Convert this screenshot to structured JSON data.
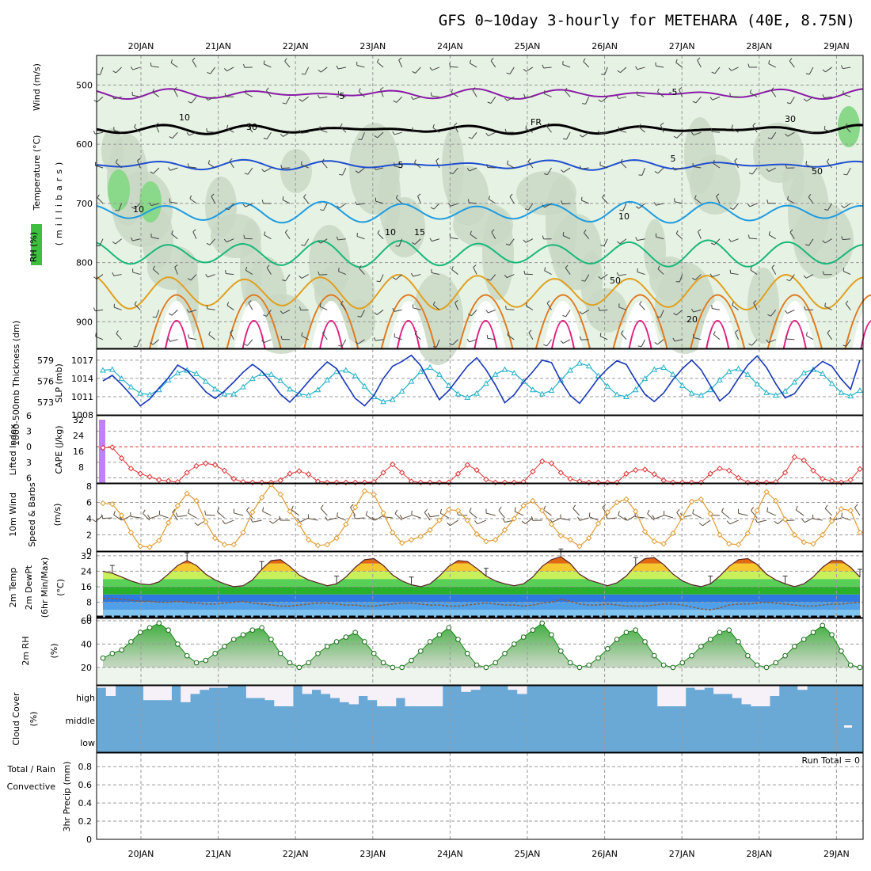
{
  "title": "GFS 0~10day 3-hourly for METEHARA (40E, 8.75N)",
  "run_total": "Run Total = 0",
  "colors": {
    "rh_fill": "#e6f2e3",
    "rh_mid": "#c9d8c6",
    "rh_hi": "#8ad88a",
    "thickness": "#20b0c8",
    "slp": "#1838b8",
    "li": "#e03030",
    "cape": "#c080f8",
    "wind10": "#e09a30",
    "cloud": "#6aa9d6",
    "rh2m": "#43b043"
  },
  "chart_data": [
    {
      "name": "upper-air",
      "type": "heatmap",
      "ylabel_parts": [
        "RH (%)",
        "Temperature (°C)",
        "Wind (m/s)"
      ],
      "y_axis_title": "(millibars)",
      "y_ticks": [
        500,
        600,
        700,
        800,
        900
      ],
      "ylim": [
        945,
        450
      ],
      "x_labels": [
        "20JAN",
        "21JAN",
        "22JAN",
        "23JAN",
        "24JAN",
        "25JAN",
        "26JAN",
        "27JAN",
        "28JAN",
        "29JAN"
      ],
      "contour_labels": [
        "-5",
        "-5",
        "FR",
        "5",
        "5",
        "10",
        "10",
        "10",
        "15",
        "20",
        "10",
        "30",
        "30",
        "50",
        "50"
      ],
      "isotherms": [
        {
          "label": "-5",
          "level": 515,
          "amp": 10,
          "color": "#8a1aa8"
        },
        {
          "label": "FR",
          "level": 575,
          "amp": 8,
          "color": "#000000"
        },
        {
          "label": "5",
          "level": 635,
          "amp": 10,
          "color": "#1f4fd0"
        },
        {
          "label": "10",
          "level": 715,
          "amp": 30,
          "color": "#1e9be0"
        },
        {
          "label": "15",
          "level": 785,
          "amp": 40,
          "color": "#18b87a"
        },
        {
          "label": "20",
          "level": 850,
          "amp": 55,
          "color": "#e0a020"
        }
      ]
    },
    {
      "name": "thickness-slp",
      "type": "line",
      "ylabel_left": "1000-500mb Thickness (dm)",
      "ylabel_right": "SLP (mb)",
      "left_ticks": [
        573,
        576,
        579
      ],
      "right_ticks": [
        1008,
        1011,
        1014,
        1017
      ],
      "thickness": [
        577.6,
        577.7,
        576.4,
        575.2,
        574.3,
        574.1,
        574.8,
        576.2,
        577.2,
        577.6,
        577.1,
        576.0,
        574.9,
        574.2,
        574.2,
        575.2,
        576.4,
        577.1,
        577.0,
        576.1,
        574.9,
        574.2,
        574.0,
        574.8,
        576.2,
        577.4,
        577.6,
        576.8,
        575.3,
        573.8,
        573.1,
        573.4,
        574.6,
        576.0,
        577.4,
        578.0,
        577.0,
        575.4,
        574.2,
        573.7,
        574.3,
        575.7,
        577.0,
        577.7,
        577.2,
        576.0,
        574.8,
        574.2,
        574.7,
        576.2,
        577.6,
        578.6,
        578.2,
        576.8,
        575.3,
        574.1,
        573.8,
        574.8,
        576.4,
        577.7,
        578.0,
        577.0,
        575.4,
        574.3,
        574.0,
        574.8,
        576.2,
        577.4,
        577.8,
        577.0,
        575.6,
        574.4,
        574.0,
        574.6,
        575.9,
        577.2,
        577.7,
        577.1,
        575.7,
        574.4,
        573.9,
        574.7
      ],
      "slp": [
        1013.6,
        1014.5,
        1013.0,
        1011.3,
        1009.5,
        1010.6,
        1012.4,
        1014.1,
        1016.2,
        1015.3,
        1013.6,
        1011.8,
        1010.7,
        1011.9,
        1013.4,
        1015.0,
        1016.3,
        1015.2,
        1013.4,
        1011.4,
        1010.1,
        1011.7,
        1013.5,
        1015.2,
        1016.7,
        1015.6,
        1013.1,
        1010.7,
        1009.5,
        1011.2,
        1014.0,
        1016.0,
        1016.8,
        1017.8,
        1016.1,
        1013.2,
        1010.5,
        1012.0,
        1014.0,
        1016.0,
        1017.4,
        1015.4,
        1012.9,
        1010.0,
        1011.3,
        1013.4,
        1015.1,
        1017.0,
        1016.6,
        1013.6,
        1011.2,
        1009.9,
        1011.9,
        1014.0,
        1015.6,
        1016.9,
        1016.3,
        1013.7,
        1011.4,
        1010.2,
        1011.6,
        1013.8,
        1015.6,
        1017.0,
        1015.4,
        1012.8,
        1010.3,
        1011.6,
        1014.0,
        1016.2,
        1017.7,
        1015.8,
        1013.1,
        1010.8,
        1011.5,
        1013.6,
        1015.5,
        1016.8,
        1016.0,
        1013.9,
        1012.2,
        1017.0
      ]
    },
    {
      "name": "lifted-index-cape",
      "type": "line",
      "ylabel_left": "Lifted Index",
      "ylabel_right": "CAPE (J/kg)",
      "left_ticks": [
        -6,
        -3,
        0,
        3,
        6
      ],
      "left_tick_labels": [
        "6",
        "3",
        "0",
        "3",
        "6"
      ],
      "right_ticks": [
        8,
        16,
        24,
        32
      ],
      "cape": [
        32,
        0,
        0,
        0,
        0,
        0,
        0,
        0,
        0,
        0,
        0,
        0,
        0,
        0,
        0,
        0,
        0,
        0,
        0,
        0,
        0,
        0,
        0,
        0,
        0,
        0,
        0,
        0,
        0,
        0,
        0,
        0,
        0,
        0,
        0,
        0,
        0,
        0,
        0,
        0,
        0,
        0,
        0,
        0,
        0,
        0,
        0,
        0,
        0,
        0,
        0,
        0,
        0,
        0,
        0,
        0,
        0,
        0,
        0,
        0,
        0,
        0,
        0,
        0,
        0,
        0,
        0,
        0,
        0,
        0,
        0,
        0,
        0,
        0,
        0,
        0,
        0,
        0,
        0,
        0,
        0,
        0
      ],
      "lifted_index": [
        0.2,
        0.1,
        2.2,
        4.2,
        5.2,
        5.8,
        6.4,
        6.6,
        6.8,
        5.0,
        3.7,
        3.2,
        3.5,
        4.6,
        6.2,
        6.8,
        7.0,
        7.0,
        7.0,
        6.5,
        5.2,
        4.7,
        5.3,
        6.7,
        7.0,
        7.0,
        7.0,
        7.0,
        7.0,
        6.8,
        5.0,
        3.4,
        5.0,
        6.7,
        7.0,
        7.0,
        7.0,
        6.9,
        5.2,
        3.5,
        4.5,
        6.3,
        7.0,
        7.0,
        7.0,
        6.8,
        4.8,
        2.8,
        3.2,
        5.0,
        6.2,
        6.7,
        7.0,
        7.0,
        7.0,
        6.9,
        5.2,
        4.5,
        4.4,
        5.3,
        6.5,
        7.0,
        7.0,
        7.0,
        6.9,
        5.2,
        4.2,
        4.6,
        6.0,
        7.0,
        7.0,
        7.0,
        6.8,
        5.0,
        2.0,
        2.6,
        4.6,
        6.2,
        6.6,
        6.9,
        6.4,
        4.3
      ]
    },
    {
      "name": "wind10m",
      "type": "line",
      "ylabel": "10m Wind Speed & Barbs (m/s)",
      "ylim": [
        0,
        8
      ],
      "y_ticks": [
        0,
        2,
        4,
        6,
        8
      ],
      "values": [
        5.9,
        5.8,
        4.4,
        2.3,
        0.6,
        0.5,
        1.3,
        3.5,
        5.6,
        7.1,
        6.2,
        3.6,
        1.6,
        0.8,
        0.8,
        2.3,
        4.8,
        6.6,
        8.2,
        7.0,
        4.9,
        3.3,
        1.4,
        0.7,
        0.8,
        1.6,
        3.3,
        5.4,
        7.4,
        7.0,
        4.7,
        2.3,
        1.0,
        1.4,
        1.8,
        2.6,
        3.8,
        5.1,
        5.0,
        3.8,
        2.1,
        1.2,
        1.4,
        2.6,
        4.0,
        5.6,
        6.2,
        5.0,
        3.3,
        1.9,
        1.4,
        0.6,
        1.6,
        3.4,
        4.8,
        6.0,
        6.4,
        4.9,
        2.4,
        1.2,
        0.9,
        2.2,
        4.2,
        6.1,
        6.4,
        4.6,
        2.0,
        0.9,
        0.8,
        2.2,
        5.0,
        7.3,
        6.2,
        3.9,
        2.0,
        1.1,
        0.9,
        2.0,
        3.7,
        5.2,
        5.0,
        2.3
      ]
    },
    {
      "name": "temperature-dewpoint",
      "type": "area",
      "ylabel": "2m Temp 2m DewPt (6hr Min/Max) (°C)",
      "y_ticks": [
        0,
        8,
        16,
        24,
        32
      ],
      "ylim": [
        0,
        34
      ],
      "temperature": [
        24.0,
        23.0,
        21.0,
        19.0,
        17.5,
        17.0,
        18.5,
        22.5,
        27.0,
        29.5,
        27.0,
        22.5,
        19.5,
        17.5,
        16.0,
        16.5,
        19.5,
        25.0,
        29.5,
        30.0,
        26.5,
        22.0,
        19.5,
        18.0,
        16.5,
        17.5,
        21.0,
        26.0,
        30.0,
        30.5,
        27.0,
        22.0,
        19.0,
        17.0,
        16.0,
        17.5,
        21.5,
        26.5,
        29.5,
        29.0,
        25.5,
        21.5,
        19.0,
        17.5,
        16.5,
        17.5,
        21.0,
        26.5,
        30.0,
        31.5,
        28.0,
        22.5,
        19.5,
        18.0,
        16.5,
        18.0,
        21.5,
        27.0,
        30.5,
        31.0,
        27.5,
        22.5,
        19.0,
        17.0,
        16.0,
        17.5,
        21.5,
        26.5,
        30.0,
        30.5,
        27.5,
        22.5,
        19.5,
        17.5,
        16.0,
        17.5,
        21.0,
        26.0,
        29.5,
        29.5,
        26.0,
        21.0
      ],
      "dewpoint": [
        10.0,
        10.0,
        9.5,
        9.0,
        8.5,
        8.5,
        8.0,
        8.0,
        8.5,
        8.0,
        7.5,
        7.0,
        7.0,
        7.5,
        8.0,
        8.5,
        7.5,
        7.0,
        6.5,
        6.0,
        6.0,
        6.5,
        7.0,
        7.5,
        7.5,
        7.0,
        6.5,
        6.5,
        6.0,
        6.0,
        6.5,
        7.0,
        7.5,
        7.5,
        7.0,
        6.5,
        6.5,
        6.0,
        6.0,
        6.5,
        7.0,
        7.5,
        7.0,
        6.5,
        6.5,
        6.0,
        6.5,
        7.5,
        8.0,
        9.5,
        8.5,
        7.0,
        6.5,
        6.5,
        7.0,
        6.5,
        6.0,
        6.0,
        6.0,
        6.5,
        7.0,
        7.0,
        6.5,
        5.5,
        4.5,
        4.0,
        5.0,
        6.5,
        7.0,
        7.0,
        7.5,
        8.0,
        7.5,
        7.0,
        6.5,
        6.0,
        6.0,
        6.5,
        7.0,
        7.0,
        7.5,
        8.0
      ]
    },
    {
      "name": "rh2m",
      "type": "area",
      "ylabel": "2m RH (%)",
      "ylim": [
        5,
        62
      ],
      "y_ticks": [
        20,
        40,
        60
      ],
      "values": [
        28,
        32,
        35,
        42,
        50,
        54,
        58,
        52,
        40,
        30,
        24,
        26,
        32,
        38,
        44,
        48,
        52,
        54,
        44,
        32,
        24,
        20,
        24,
        32,
        38,
        42,
        46,
        50,
        42,
        32,
        24,
        20,
        20,
        26,
        34,
        42,
        48,
        54,
        44,
        32,
        22,
        20,
        24,
        32,
        40,
        46,
        52,
        58,
        48,
        34,
        24,
        20,
        22,
        28,
        36,
        44,
        50,
        52,
        42,
        30,
        22,
        20,
        24,
        30,
        38,
        44,
        50,
        52,
        42,
        30,
        22,
        20,
        24,
        30,
        38,
        44,
        50,
        56,
        48,
        34,
        22,
        20
      ]
    },
    {
      "name": "cloud-cover",
      "type": "bar",
      "ylabel": "Cloud Cover (%)",
      "level_labels": [
        "high",
        "middle",
        "low"
      ],
      "high_gap": [
        10,
        50,
        0,
        0,
        0,
        70,
        70,
        70,
        0,
        80,
        40,
        20,
        10,
        10,
        0,
        0,
        60,
        60,
        70,
        100,
        100,
        0,
        40,
        20,
        40,
        60,
        80,
        90,
        50,
        70,
        100,
        100,
        60,
        100,
        100,
        100,
        100,
        0,
        0,
        30,
        20,
        0,
        0,
        0,
        20,
        40,
        0,
        0,
        0,
        0,
        0,
        0,
        0,
        0,
        0,
        0,
        0,
        0,
        0,
        0,
        100,
        100,
        100,
        10,
        20,
        10,
        40,
        40,
        60,
        90,
        100,
        100,
        50,
        0,
        0,
        20,
        0,
        0,
        0,
        0,
        0,
        0
      ]
    },
    {
      "name": "precipitation",
      "type": "bar",
      "ylabel_parts": [
        "Total / Rain",
        "Convective",
        "3hr Precip (mm)"
      ],
      "y_ticks": [
        0,
        0.2,
        0.4,
        0.6,
        0.8
      ],
      "y_tick_labels": [
        "0",
        "0.2",
        "0.4",
        "0.6",
        "0.8"
      ],
      "ylim": [
        0,
        0.95
      ],
      "values": [
        0,
        0,
        0,
        0,
        0,
        0,
        0,
        0,
        0,
        0,
        0,
        0,
        0,
        0,
        0,
        0,
        0,
        0,
        0,
        0,
        0,
        0,
        0,
        0,
        0,
        0,
        0,
        0,
        0,
        0,
        0,
        0,
        0,
        0,
        0,
        0,
        0,
        0,
        0,
        0,
        0,
        0,
        0,
        0,
        0,
        0,
        0,
        0,
        0,
        0,
        0,
        0,
        0,
        0,
        0,
        0,
        0,
        0,
        0,
        0,
        0,
        0,
        0,
        0,
        0,
        0,
        0,
        0,
        0,
        0,
        0,
        0,
        0,
        0,
        0,
        0,
        0,
        0,
        0,
        0,
        0,
        0
      ]
    }
  ]
}
